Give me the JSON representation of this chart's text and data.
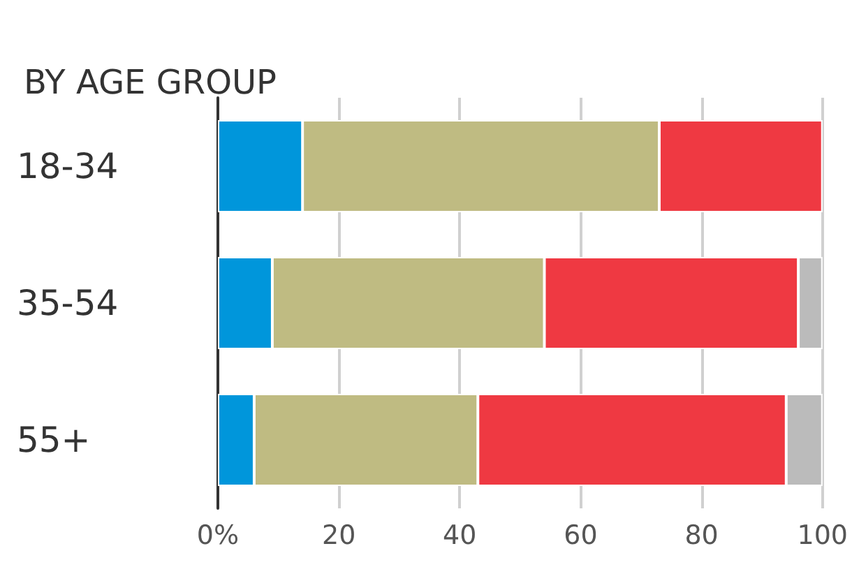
{
  "chart_data": {
    "type": "bar",
    "orientation": "horizontal",
    "stacked": true,
    "title": "BY AGE GROUP",
    "categories": [
      "18-34",
      "35-54",
      "55+"
    ],
    "series": [
      {
        "color": "#0096db",
        "values": [
          14,
          9,
          6
        ]
      },
      {
        "color": "#bfbb82",
        "values": [
          59,
          45,
          37
        ]
      },
      {
        "color": "#ef3942",
        "values": [
          27,
          42,
          51
        ]
      },
      {
        "color": "#bbbbbb",
        "values": [
          0,
          4,
          6
        ]
      }
    ],
    "xlim": [
      0,
      100
    ],
    "xticks": [
      {
        "value": 0,
        "label": "0%"
      },
      20,
      40,
      60,
      80,
      100
    ],
    "grid": "x"
  }
}
